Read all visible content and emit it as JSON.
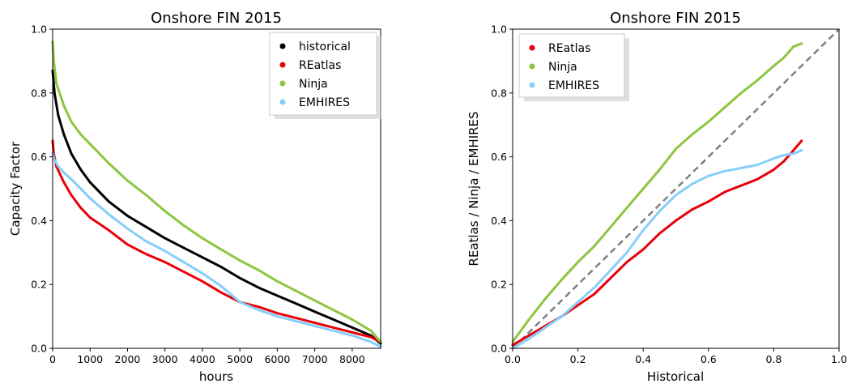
{
  "chart_data": [
    {
      "type": "line",
      "title": "Onshore FIN 2015",
      "xlabel": "hours",
      "ylabel": "Capacity Factor",
      "xlim": [
        0,
        8760
      ],
      "ylim": [
        0,
        1.0
      ],
      "xticks": [
        0,
        1000,
        2000,
        3000,
        4000,
        5000,
        6000,
        7000,
        8000
      ],
      "yticks": [
        0.0,
        0.2,
        0.4,
        0.6,
        0.8,
        1.0
      ],
      "grid": false,
      "legend": "top-right",
      "series": [
        {
          "name": "historical",
          "color": "#000000",
          "x": [
            0,
            50,
            150,
            300,
            500,
            750,
            1000,
            1500,
            2000,
            2500,
            3000,
            3500,
            4000,
            4500,
            5000,
            5500,
            6000,
            6500,
            7000,
            7500,
            8000,
            8500,
            8760
          ],
          "y": [
            0.87,
            0.8,
            0.73,
            0.67,
            0.61,
            0.56,
            0.52,
            0.46,
            0.415,
            0.38,
            0.345,
            0.315,
            0.285,
            0.255,
            0.22,
            0.19,
            0.165,
            0.14,
            0.115,
            0.09,
            0.065,
            0.04,
            0.015
          ]
        },
        {
          "name": "REatlas",
          "color": "#e8000b",
          "x": [
            0,
            30,
            100,
            300,
            500,
            750,
            1000,
            1500,
            2000,
            2500,
            3000,
            3500,
            4000,
            4500,
            5000,
            5500,
            6000,
            6500,
            7000,
            7500,
            8000,
            8500,
            8760
          ],
          "y": [
            0.65,
            0.61,
            0.57,
            0.52,
            0.48,
            0.44,
            0.41,
            0.37,
            0.325,
            0.295,
            0.27,
            0.24,
            0.21,
            0.175,
            0.145,
            0.13,
            0.11,
            0.095,
            0.08,
            0.065,
            0.05,
            0.035,
            0.02
          ]
        },
        {
          "name": "Ninja",
          "color": "#8dc63f",
          "x": [
            0,
            30,
            100,
            300,
            500,
            750,
            1000,
            1500,
            2000,
            2500,
            3000,
            3500,
            4000,
            4500,
            5000,
            5500,
            6000,
            6500,
            7000,
            7500,
            8000,
            8500,
            8760
          ],
          "y": [
            0.96,
            0.9,
            0.83,
            0.76,
            0.71,
            0.67,
            0.64,
            0.58,
            0.525,
            0.48,
            0.43,
            0.385,
            0.345,
            0.31,
            0.275,
            0.245,
            0.21,
            0.18,
            0.15,
            0.12,
            0.09,
            0.055,
            0.02
          ]
        },
        {
          "name": "EMHIRES",
          "color": "#87cefa",
          "x": [
            0,
            50,
            150,
            300,
            500,
            750,
            1000,
            1500,
            2000,
            2500,
            3000,
            3500,
            4000,
            4500,
            5000,
            5500,
            6000,
            6500,
            7000,
            7500,
            8000,
            8500,
            8760
          ],
          "y": [
            0.61,
            0.59,
            0.57,
            0.55,
            0.53,
            0.5,
            0.47,
            0.42,
            0.375,
            0.335,
            0.305,
            0.27,
            0.235,
            0.195,
            0.145,
            0.12,
            0.1,
            0.085,
            0.07,
            0.055,
            0.04,
            0.02,
            0.005
          ]
        }
      ]
    },
    {
      "type": "scatter",
      "title": "Onshore FIN 2015",
      "xlabel": "Historical",
      "ylabel": "REatlas / Ninja / EMHIRES",
      "xlim": [
        0,
        1.0
      ],
      "ylim": [
        0,
        1.0
      ],
      "xticks": [
        0.0,
        0.2,
        0.4,
        0.6,
        0.8,
        1.0
      ],
      "yticks": [
        0.0,
        0.2,
        0.4,
        0.6,
        0.8,
        1.0
      ],
      "grid": false,
      "legend": "top-left",
      "diagonal": {
        "color": "#808080",
        "style": "dashed"
      },
      "series": [
        {
          "name": "REatlas",
          "color": "#e8000b",
          "x": [
            0,
            0.05,
            0.1,
            0.15,
            0.2,
            0.25,
            0.3,
            0.35,
            0.4,
            0.45,
            0.5,
            0.55,
            0.6,
            0.65,
            0.7,
            0.75,
            0.8,
            0.83,
            0.86,
            0.885
          ],
          "y": [
            0.01,
            0.04,
            0.07,
            0.1,
            0.135,
            0.17,
            0.22,
            0.27,
            0.31,
            0.36,
            0.4,
            0.435,
            0.46,
            0.49,
            0.51,
            0.53,
            0.56,
            0.585,
            0.62,
            0.65
          ]
        },
        {
          "name": "Ninja",
          "color": "#8dc63f",
          "x": [
            0,
            0.05,
            0.1,
            0.15,
            0.2,
            0.25,
            0.3,
            0.35,
            0.4,
            0.45,
            0.5,
            0.55,
            0.6,
            0.65,
            0.7,
            0.75,
            0.8,
            0.83,
            0.86,
            0.885
          ],
          "y": [
            0.02,
            0.09,
            0.155,
            0.215,
            0.27,
            0.32,
            0.38,
            0.44,
            0.5,
            0.56,
            0.625,
            0.67,
            0.71,
            0.755,
            0.8,
            0.84,
            0.885,
            0.91,
            0.945,
            0.955
          ]
        },
        {
          "name": "EMHIRES",
          "color": "#87cefa",
          "x": [
            0,
            0.05,
            0.1,
            0.15,
            0.2,
            0.25,
            0.3,
            0.35,
            0.4,
            0.45,
            0.5,
            0.55,
            0.6,
            0.65,
            0.7,
            0.75,
            0.8,
            0.83,
            0.86,
            0.885
          ],
          "y": [
            0.0,
            0.03,
            0.065,
            0.1,
            0.145,
            0.19,
            0.245,
            0.3,
            0.37,
            0.43,
            0.48,
            0.515,
            0.54,
            0.555,
            0.565,
            0.575,
            0.595,
            0.605,
            0.61,
            0.62
          ]
        }
      ]
    }
  ]
}
